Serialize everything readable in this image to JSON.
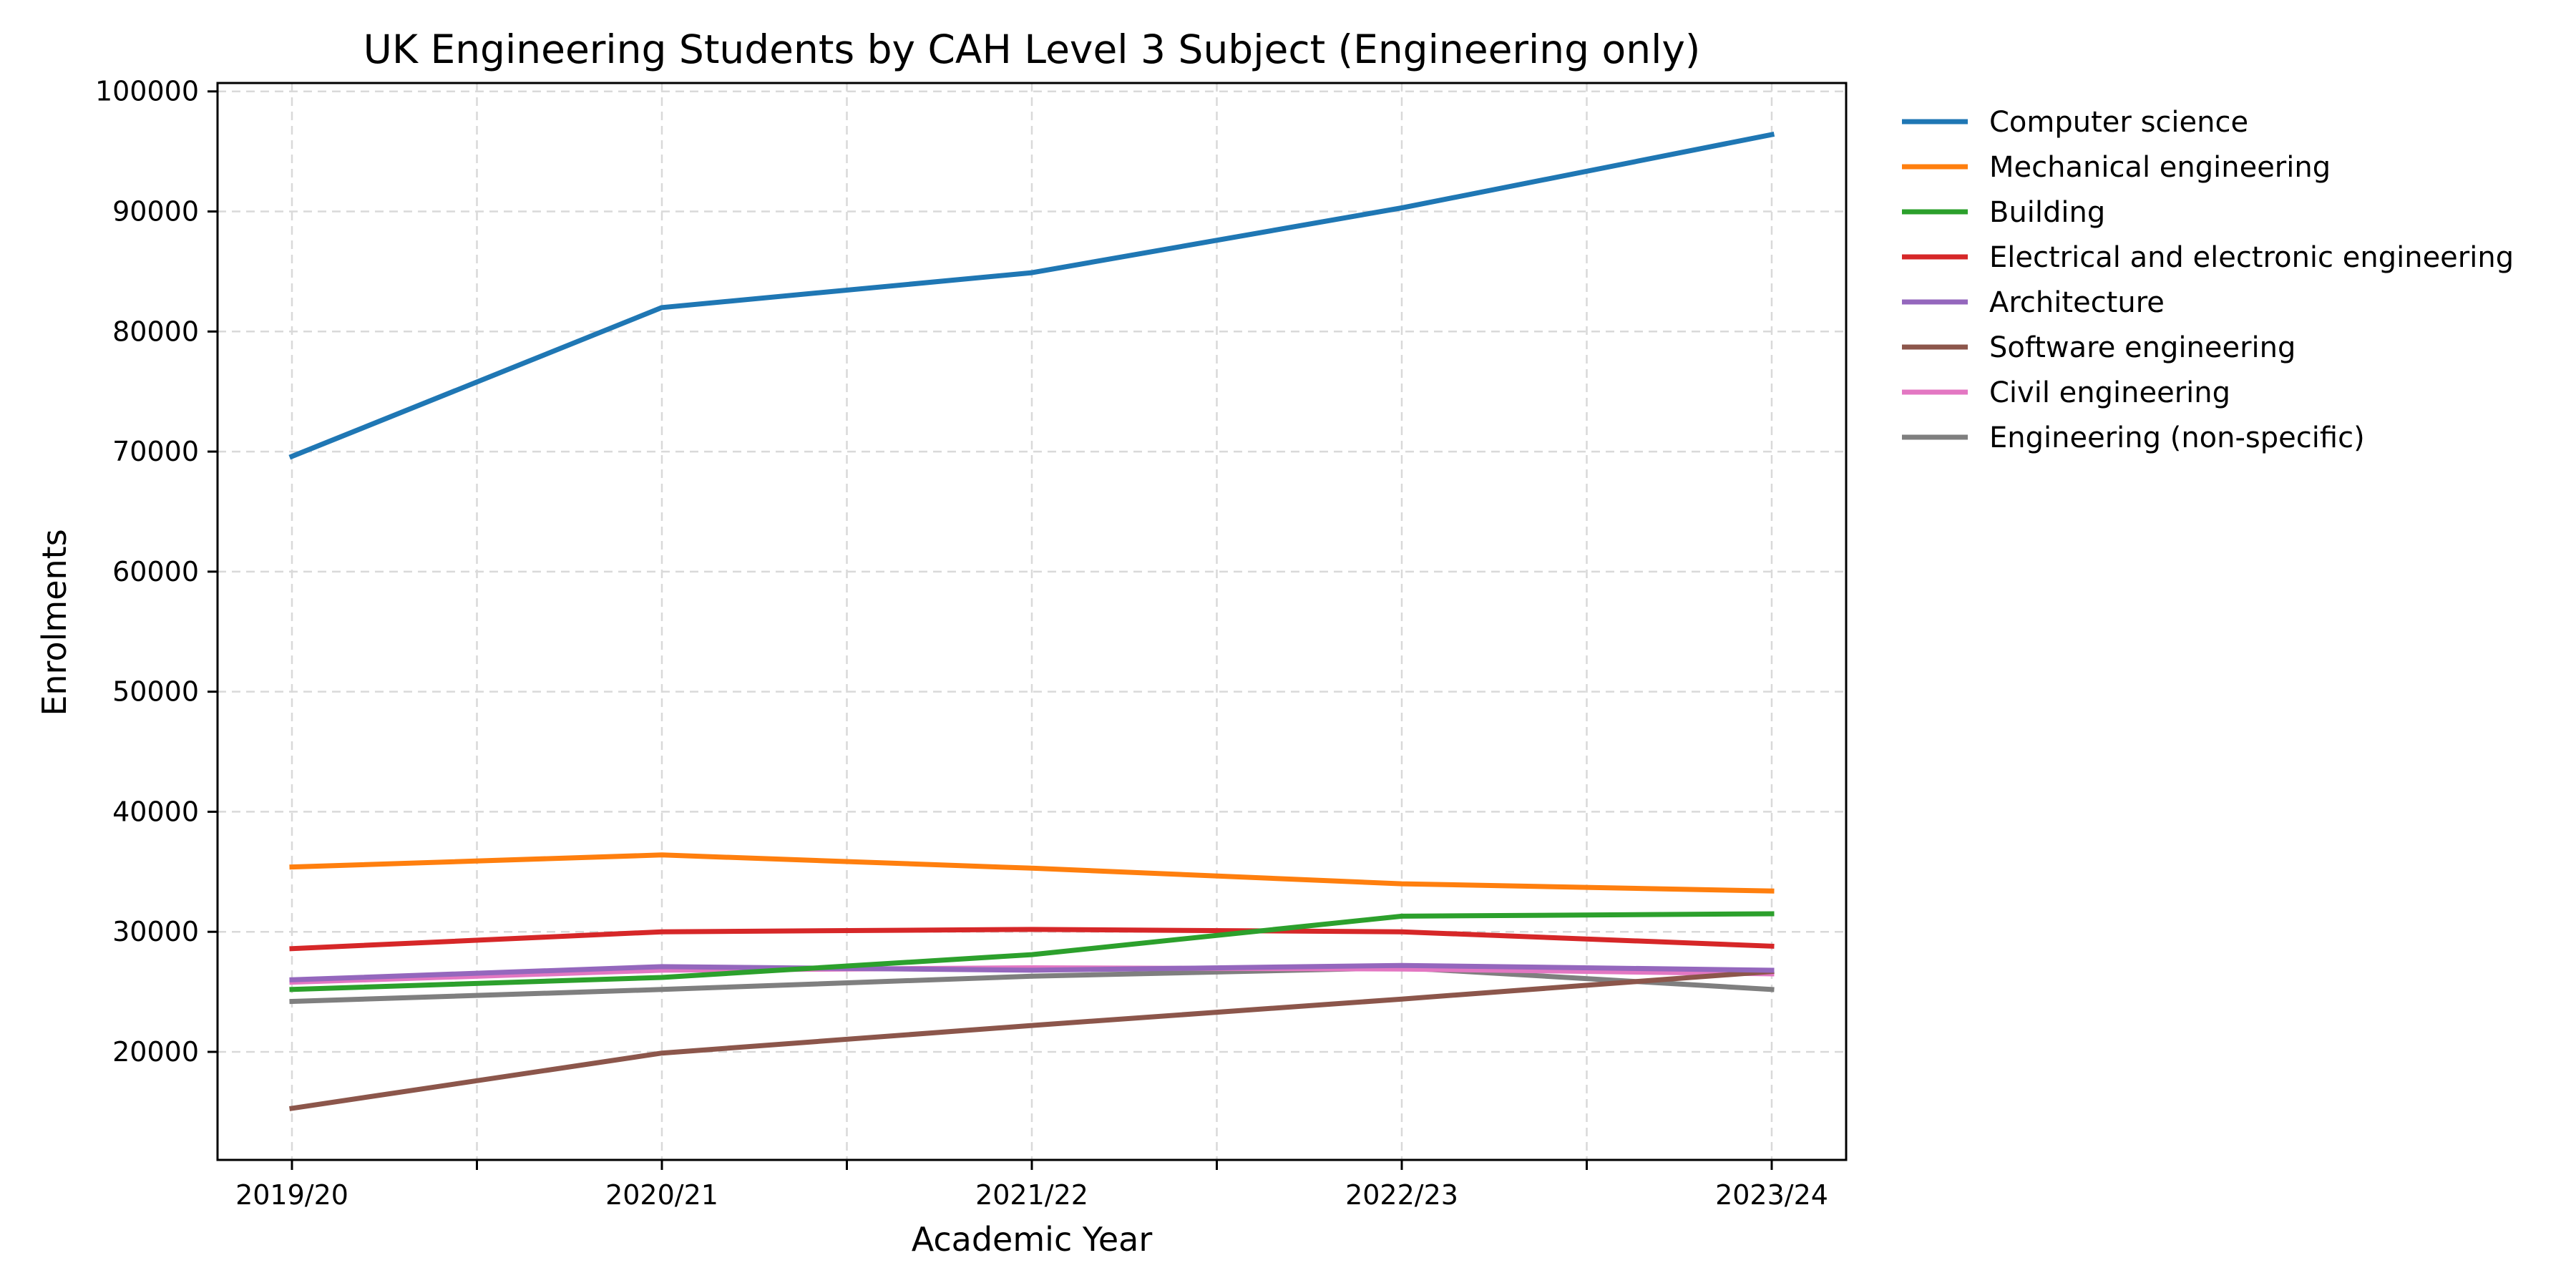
{
  "chart_data": {
    "type": "line",
    "title": "UK Engineering Students by CAH Level 3 Subject (Engineering only)",
    "xlabel": "Academic Year",
    "ylabel": "Enrolments",
    "categories": [
      "2019/20",
      "2020/21",
      "2021/22",
      "2022/23",
      "2023/24"
    ],
    "ylim": [
      11000,
      100700
    ],
    "yticks": [
      20000,
      30000,
      40000,
      50000,
      60000,
      70000,
      80000,
      90000,
      100000
    ],
    "ytick_labels": [
      "20000",
      "30000",
      "40000",
      "50000",
      "60000",
      "70000",
      "80000",
      "90000",
      "100000"
    ],
    "grid": true,
    "legend_position": "outside-right",
    "series": [
      {
        "name": "Computer science",
        "color": "#1f77b4",
        "values": [
          69600,
          82000,
          84900,
          90300,
          96400
        ]
      },
      {
        "name": "Mechanical engineering",
        "color": "#ff7f0e",
        "values": [
          35400,
          36400,
          35300,
          34000,
          33400
        ]
      },
      {
        "name": "Building",
        "color": "#2ca02c",
        "values": [
          25200,
          26200,
          28100,
          31300,
          31500
        ]
      },
      {
        "name": "Electrical and electronic engineering",
        "color": "#d62728",
        "values": [
          28600,
          30000,
          30200,
          30000,
          28800
        ]
      },
      {
        "name": "Architecture",
        "color": "#9467bd",
        "values": [
          26000,
          27100,
          26800,
          27200,
          26800
        ]
      },
      {
        "name": "Software engineering",
        "color": "#8c564b",
        "values": [
          15300,
          19900,
          22200,
          24400,
          26700
        ]
      },
      {
        "name": "Civil engineering",
        "color": "#e377c2",
        "values": [
          25800,
          26800,
          27000,
          26900,
          26500
        ]
      },
      {
        "name": "Engineering (non-specific)",
        "color": "#7f7f7f",
        "values": [
          24200,
          25200,
          26300,
          27000,
          25200
        ]
      }
    ]
  }
}
